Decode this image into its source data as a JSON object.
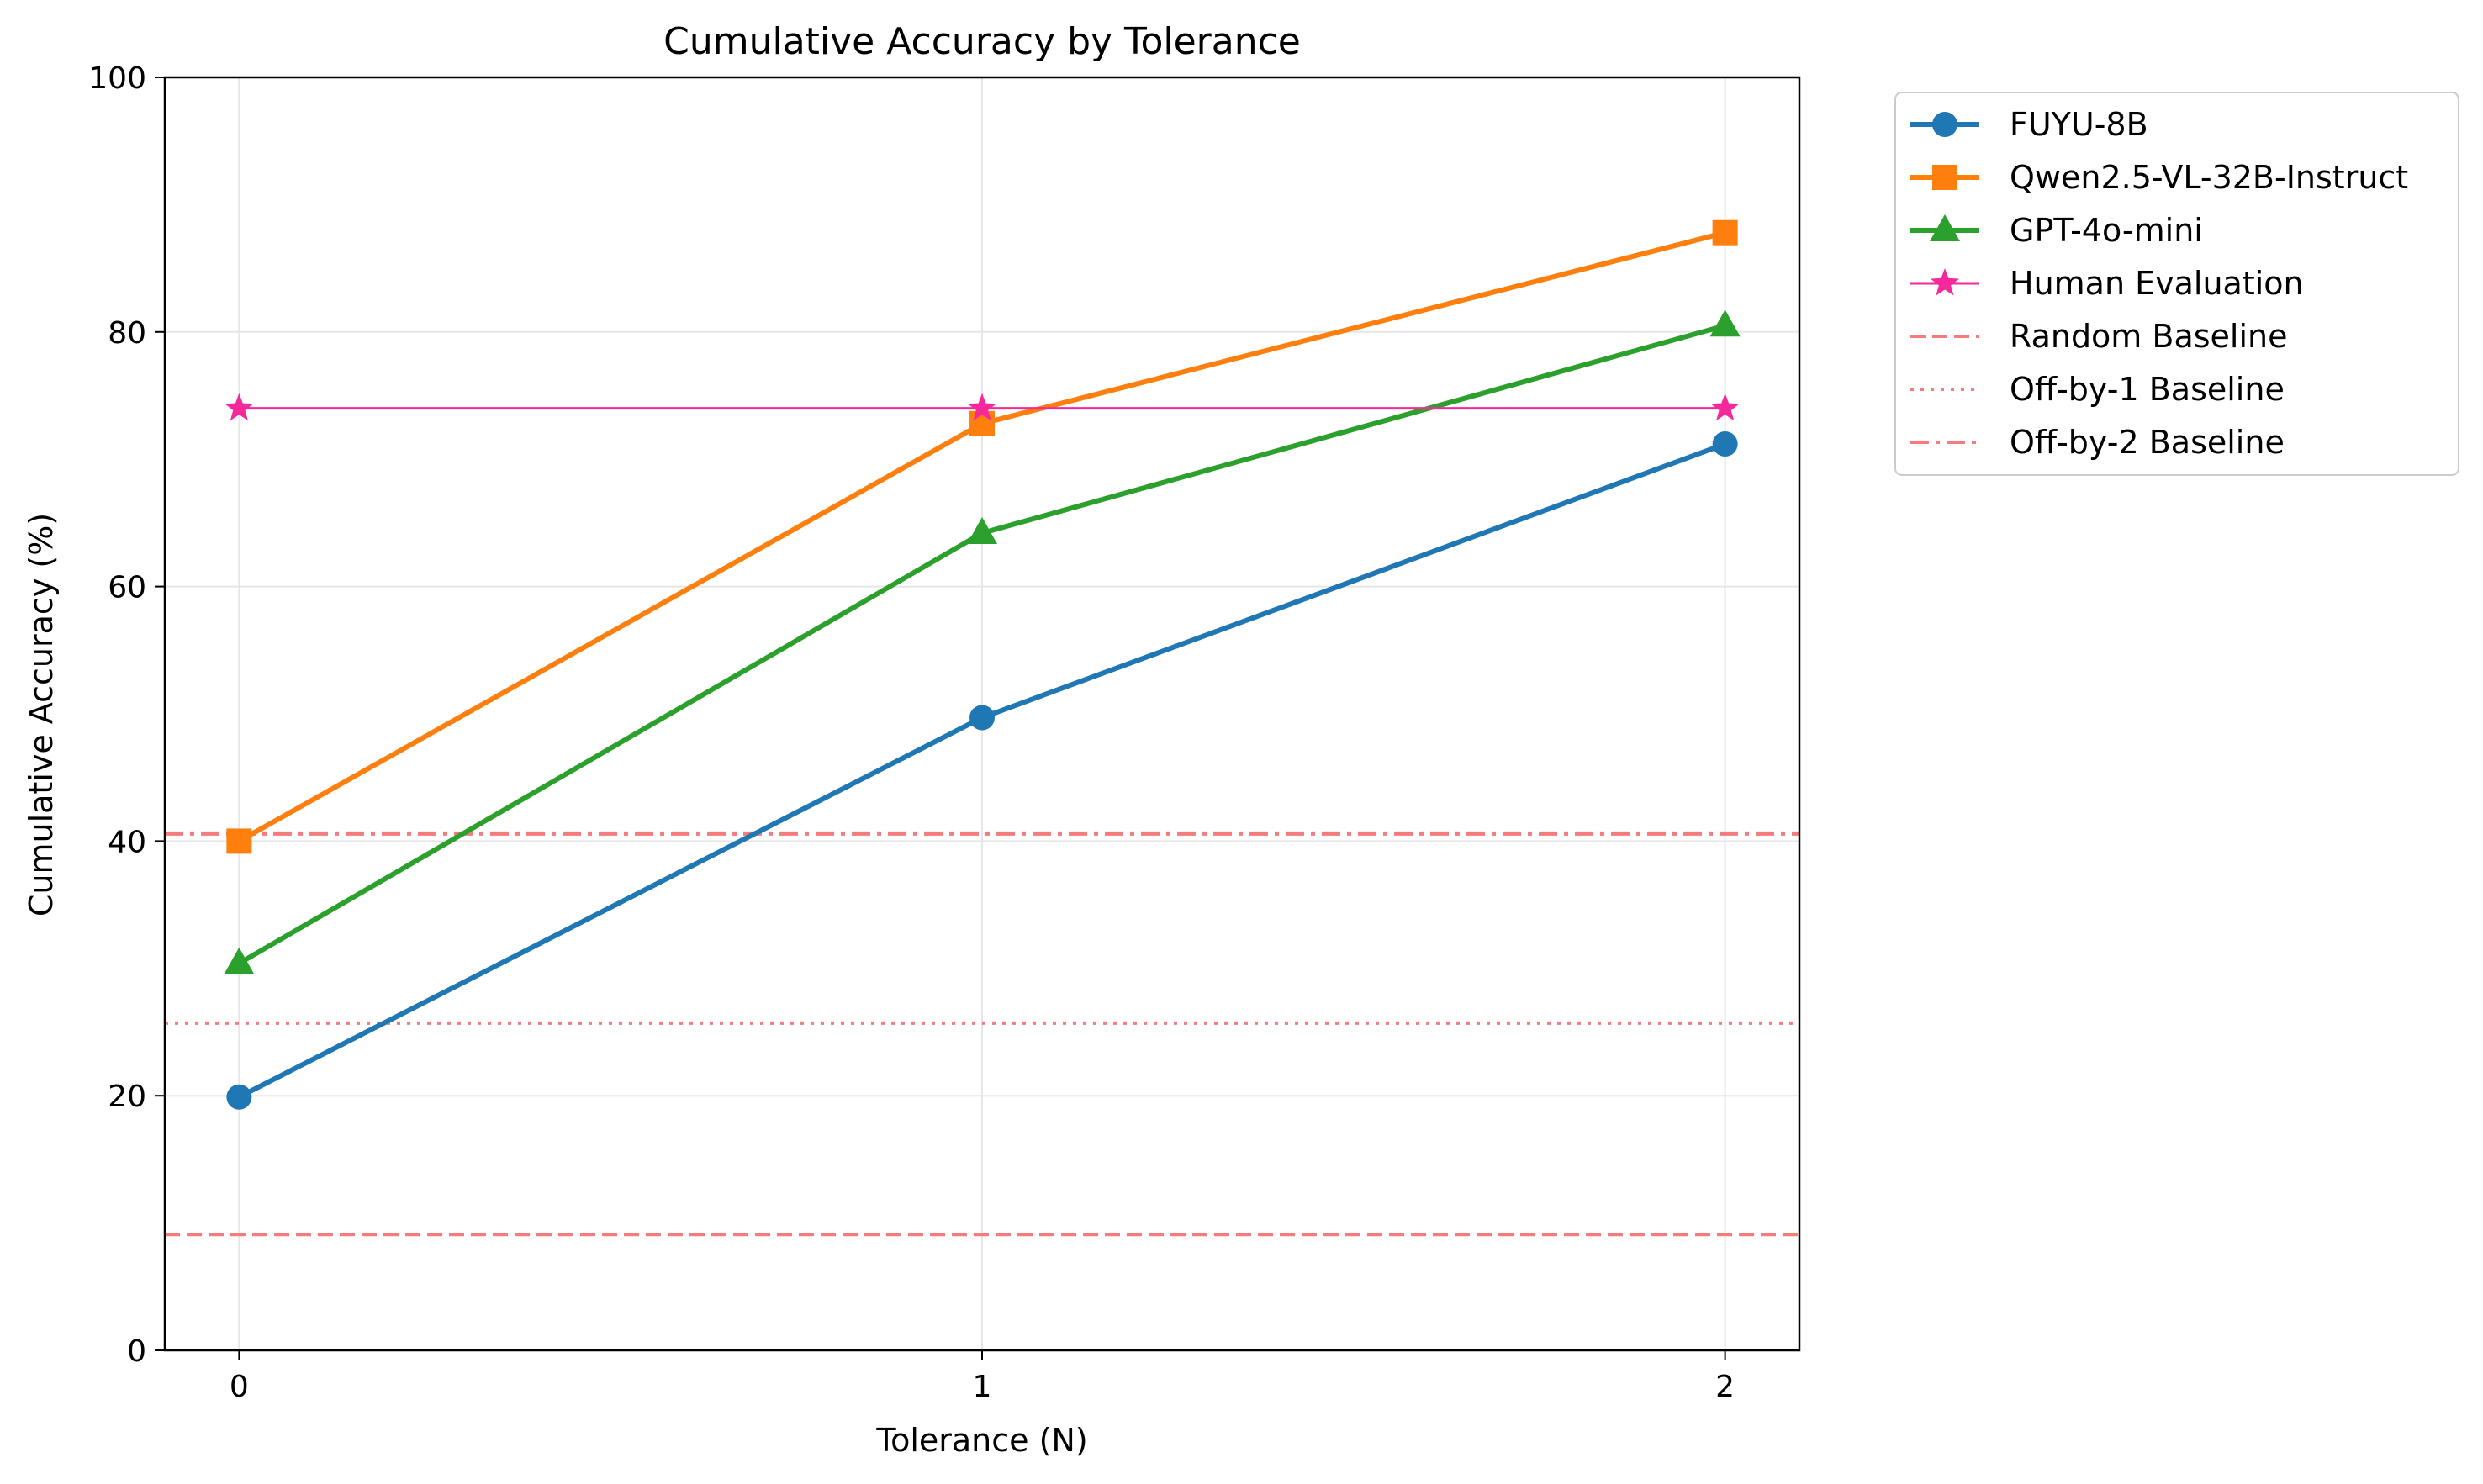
{
  "chart_data": {
    "type": "line",
    "title": "Cumulative Accuracy by Tolerance",
    "xlabel": "Tolerance (N)",
    "ylabel": "Cumulative Accuracy (%)",
    "x": [
      0,
      1,
      2
    ],
    "x_tick_labels": [
      "0",
      "1",
      "2"
    ],
    "y_ticks": [
      0,
      20,
      40,
      60,
      80,
      100
    ],
    "y_tick_labels": [
      "0",
      "20",
      "40",
      "60",
      "80",
      "100"
    ],
    "xlim": [
      -0.1,
      2.1
    ],
    "ylim": [
      0,
      100
    ],
    "grid": true,
    "legend_position": "outside-right",
    "series": [
      {
        "name": "FUYU-8B",
        "values": [
          19.9,
          49.7,
          71.2
        ],
        "color": "#1f77b4",
        "marker": "circle",
        "style": "solid"
      },
      {
        "name": "Qwen2.5-VL-32B-Instruct",
        "values": [
          40.0,
          72.8,
          87.8
        ],
        "color": "#ff7f0e",
        "marker": "square",
        "style": "solid"
      },
      {
        "name": "GPT-4o-mini",
        "values": [
          30.4,
          64.2,
          80.5
        ],
        "color": "#2ca02c",
        "marker": "triangle",
        "style": "solid"
      },
      {
        "name": "Human Evaluation",
        "values": [
          74.0,
          74.0,
          74.0
        ],
        "color": "#f7289c",
        "marker": "star",
        "style": "solid-thin"
      }
    ],
    "baselines": [
      {
        "name": "Random Baseline",
        "value": 9.1,
        "color": "#f47c7c",
        "style": "dashed"
      },
      {
        "name": "Off-by-1 Baseline",
        "value": 25.7,
        "color": "#f47c7c",
        "style": "dotted"
      },
      {
        "name": "Off-by-2 Baseline",
        "value": 40.6,
        "color": "#f47c7c",
        "style": "dashdot"
      }
    ]
  }
}
